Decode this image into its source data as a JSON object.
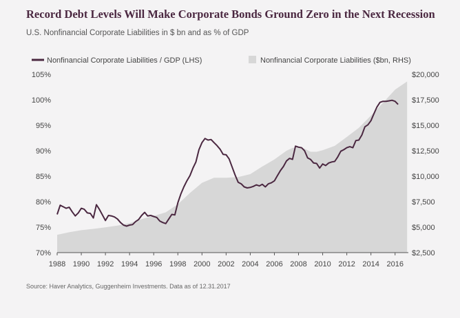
{
  "title": "Record Debt Levels Will Make Corporate Bonds Ground Zero in the Next Recession",
  "subtitle": "U.S. Nonfinancial Corporate Liabilities in $ bn and as % of GDP",
  "source": "Source: Haver Analytics, Guggenheim Investments. Data as of 12.31.2017",
  "colors": {
    "line": "#4a2740",
    "area": "#d7d7d7",
    "background": "#f4f3f4"
  },
  "chart_data": {
    "type": "line",
    "legend_placement": "top",
    "grid": false,
    "x_ticks": [
      "1988",
      "1990",
      "1992",
      "1994",
      "1996",
      "1998",
      "2000",
      "2002",
      "2004",
      "2006",
      "2008",
      "2010",
      "2012",
      "2014",
      "2016"
    ],
    "y_left_ticks": [
      "105%",
      "100%",
      "95%",
      "90%",
      "85%",
      "80%",
      "75%",
      "70%"
    ],
    "y_right_ticks": [
      "$20,000",
      "$17,500",
      "$15,000",
      "$12,500",
      "$10,000",
      "$7,500",
      "$5,000",
      "$2,500"
    ],
    "ylim_left": [
      70,
      105
    ],
    "ylim_right": [
      2500,
      20000
    ],
    "xlim": [
      1988,
      2017.1
    ],
    "series": [
      {
        "name": "Nonfinancial Corporate Liabilities / GDP (LHS)",
        "axis": "left",
        "type": "line",
        "points": [
          [
            1988.0,
            77.5
          ],
          [
            1988.25,
            79.3
          ],
          [
            1988.5,
            79.0
          ],
          [
            1988.75,
            78.7
          ],
          [
            1989.0,
            78.9
          ],
          [
            1989.25,
            78.0
          ],
          [
            1989.5,
            77.2
          ],
          [
            1989.75,
            77.8
          ],
          [
            1990.0,
            78.7
          ],
          [
            1990.25,
            78.5
          ],
          [
            1990.5,
            77.8
          ],
          [
            1990.75,
            77.7
          ],
          [
            1991.0,
            76.8
          ],
          [
            1991.25,
            79.4
          ],
          [
            1991.5,
            78.5
          ],
          [
            1991.75,
            77.4
          ],
          [
            1992.0,
            76.3
          ],
          [
            1992.25,
            77.3
          ],
          [
            1992.5,
            77.2
          ],
          [
            1992.75,
            77.0
          ],
          [
            1993.0,
            76.6
          ],
          [
            1993.25,
            75.9
          ],
          [
            1993.5,
            75.4
          ],
          [
            1993.75,
            75.2
          ],
          [
            1994.0,
            75.4
          ],
          [
            1994.25,
            75.5
          ],
          [
            1994.5,
            76.1
          ],
          [
            1994.75,
            76.5
          ],
          [
            1995.0,
            77.3
          ],
          [
            1995.25,
            77.9
          ],
          [
            1995.5,
            77.2
          ],
          [
            1995.75,
            77.3
          ],
          [
            1996.0,
            77.1
          ],
          [
            1996.25,
            76.9
          ],
          [
            1996.5,
            76.2
          ],
          [
            1996.75,
            75.9
          ],
          [
            1997.0,
            75.7
          ],
          [
            1997.25,
            76.6
          ],
          [
            1997.5,
            77.5
          ],
          [
            1997.75,
            77.4
          ],
          [
            1998.0,
            79.8
          ],
          [
            1998.25,
            81.5
          ],
          [
            1998.5,
            82.9
          ],
          [
            1998.75,
            84.1
          ],
          [
            1999.0,
            85.1
          ],
          [
            1999.25,
            86.6
          ],
          [
            1999.5,
            87.8
          ],
          [
            1999.75,
            90.2
          ],
          [
            2000.0,
            91.6
          ],
          [
            2000.25,
            92.4
          ],
          [
            2000.5,
            92.1
          ],
          [
            2000.75,
            92.2
          ],
          [
            2001.0,
            91.6
          ],
          [
            2001.25,
            91.0
          ],
          [
            2001.5,
            90.3
          ],
          [
            2001.75,
            89.3
          ],
          [
            2002.0,
            89.2
          ],
          [
            2002.25,
            88.4
          ],
          [
            2002.5,
            86.8
          ],
          [
            2002.75,
            85.2
          ],
          [
            2003.0,
            83.8
          ],
          [
            2003.25,
            83.5
          ],
          [
            2003.5,
            82.9
          ],
          [
            2003.75,
            82.7
          ],
          [
            2004.0,
            82.8
          ],
          [
            2004.25,
            83.0
          ],
          [
            2004.5,
            83.3
          ],
          [
            2004.75,
            83.1
          ],
          [
            2005.0,
            83.4
          ],
          [
            2005.25,
            82.9
          ],
          [
            2005.5,
            83.5
          ],
          [
            2005.75,
            83.7
          ],
          [
            2006.0,
            84.1
          ],
          [
            2006.25,
            85.1
          ],
          [
            2006.5,
            86.1
          ],
          [
            2006.75,
            86.9
          ],
          [
            2007.0,
            88.0
          ],
          [
            2007.25,
            88.5
          ],
          [
            2007.5,
            88.3
          ],
          [
            2007.75,
            90.9
          ],
          [
            2008.0,
            90.7
          ],
          [
            2008.25,
            90.6
          ],
          [
            2008.5,
            90.0
          ],
          [
            2008.75,
            88.6
          ],
          [
            2009.0,
            88.3
          ],
          [
            2009.25,
            87.6
          ],
          [
            2009.5,
            87.5
          ],
          [
            2009.75,
            86.6
          ],
          [
            2010.0,
            87.4
          ],
          [
            2010.25,
            87.1
          ],
          [
            2010.5,
            87.6
          ],
          [
            2010.75,
            87.8
          ],
          [
            2011.0,
            87.9
          ],
          [
            2011.25,
            88.8
          ],
          [
            2011.5,
            89.9
          ],
          [
            2011.75,
            90.2
          ],
          [
            2012.0,
            90.6
          ],
          [
            2012.25,
            90.8
          ],
          [
            2012.5,
            90.6
          ],
          [
            2012.75,
            92.0
          ],
          [
            2013.0,
            92.1
          ],
          [
            2013.25,
            93.1
          ],
          [
            2013.5,
            94.7
          ],
          [
            2013.75,
            95.1
          ],
          [
            2014.0,
            95.9
          ],
          [
            2014.25,
            97.3
          ],
          [
            2014.5,
            98.6
          ],
          [
            2014.75,
            99.5
          ],
          [
            2015.0,
            99.7
          ],
          [
            2015.25,
            99.7
          ],
          [
            2015.5,
            99.8
          ],
          [
            2015.75,
            99.9
          ],
          [
            2016.0,
            99.7
          ],
          [
            2016.25,
            99.1
          ]
        ]
      },
      {
        "name": "Nonfinancial Corporate Liabilities ($bn, RHS)",
        "axis": "right",
        "type": "area",
        "points": [
          [
            1988.0,
            4250
          ],
          [
            1989.0,
            4500
          ],
          [
            1990.0,
            4700
          ],
          [
            1991.0,
            4830
          ],
          [
            1992.0,
            4980
          ],
          [
            1993.0,
            5150
          ],
          [
            1994.0,
            5400
          ],
          [
            1995.0,
            5800
          ],
          [
            1996.0,
            6100
          ],
          [
            1997.0,
            6450
          ],
          [
            1998.0,
            7250
          ],
          [
            1999.0,
            8350
          ],
          [
            2000.0,
            9350
          ],
          [
            2001.0,
            9850
          ],
          [
            2002.0,
            9850
          ],
          [
            2003.0,
            9920
          ],
          [
            2004.0,
            10200
          ],
          [
            2005.0,
            10950
          ],
          [
            2006.0,
            11650
          ],
          [
            2007.0,
            12500
          ],
          [
            2007.5,
            12780
          ],
          [
            2008.0,
            12850
          ],
          [
            2008.5,
            12700
          ],
          [
            2009.0,
            12400
          ],
          [
            2009.5,
            12400
          ],
          [
            2010.0,
            12550
          ],
          [
            2011.0,
            12980
          ],
          [
            2012.0,
            13850
          ],
          [
            2013.0,
            14750
          ],
          [
            2014.0,
            15950
          ],
          [
            2015.0,
            17200
          ],
          [
            2016.0,
            18500
          ],
          [
            2016.5,
            18900
          ],
          [
            2017.0,
            19300
          ]
        ]
      }
    ]
  }
}
